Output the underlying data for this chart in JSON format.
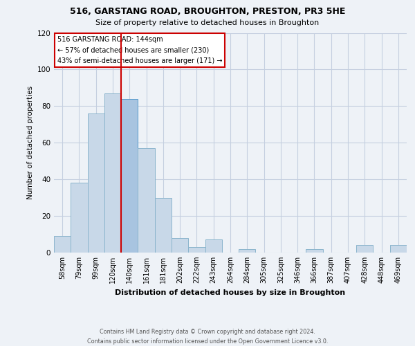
{
  "title1": "516, GARSTANG ROAD, BROUGHTON, PRESTON, PR3 5HE",
  "title2": "Size of property relative to detached houses in Broughton",
  "xlabel": "Distribution of detached houses by size in Broughton",
  "ylabel": "Number of detached properties",
  "bar_labels": [
    "58sqm",
    "79sqm",
    "99sqm",
    "120sqm",
    "140sqm",
    "161sqm",
    "181sqm",
    "202sqm",
    "222sqm",
    "243sqm",
    "264sqm",
    "284sqm",
    "305sqm",
    "325sqm",
    "346sqm",
    "366sqm",
    "387sqm",
    "407sqm",
    "428sqm",
    "448sqm",
    "469sqm"
  ],
  "bar_values": [
    9,
    38,
    76,
    87,
    84,
    57,
    30,
    8,
    3,
    7,
    0,
    2,
    0,
    0,
    0,
    2,
    0,
    0,
    4,
    0,
    4
  ],
  "bar_color": "#c8d8e8",
  "bar_edge_color": "#8ab4cc",
  "highlight_bar_index": 4,
  "highlight_bar_color": "#a8c4e0",
  "highlight_bar_edge_color": "#5599cc",
  "vline_x_index": 4,
  "vline_color": "#cc0000",
  "ylim": [
    0,
    120
  ],
  "yticks": [
    0,
    20,
    40,
    60,
    80,
    100,
    120
  ],
  "annotation_title": "516 GARSTANG ROAD: 144sqm",
  "annotation_line1": "← 57% of detached houses are smaller (230)",
  "annotation_line2": "43% of semi-detached houses are larger (171) →",
  "annotation_box_color": "#ffffff",
  "annotation_box_edge_color": "#cc0000",
  "footer1": "Contains HM Land Registry data © Crown copyright and database right 2024.",
  "footer2": "Contains public sector information licensed under the Open Government Licence v3.0.",
  "bg_color": "#eef2f7",
  "plot_bg_color": "#eef2f7",
  "grid_color": "#c5cfe0"
}
